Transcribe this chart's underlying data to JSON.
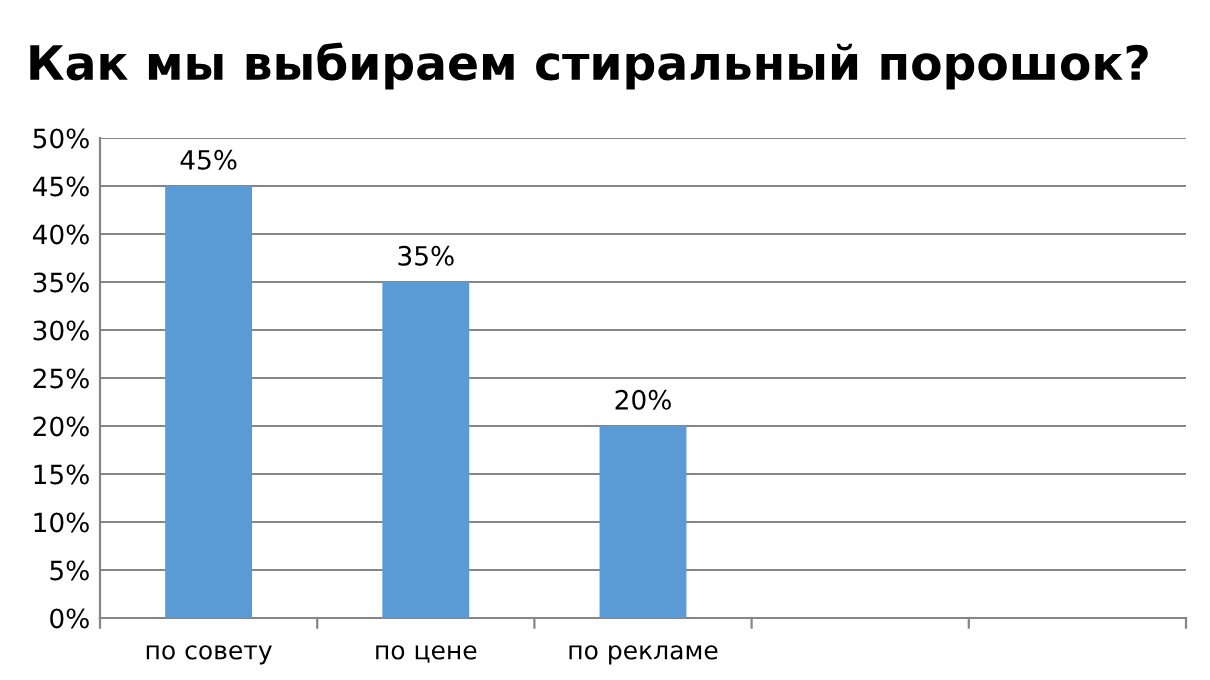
{
  "chart_data": {
    "type": "bar",
    "title": "Как мы выбираем стиральный порошок?",
    "categories": [
      "по совету",
      "по цене",
      "по рекламе",
      null,
      null
    ],
    "values": [
      45,
      35,
      20,
      null,
      null
    ],
    "value_labels": [
      "45%",
      "35%",
      "20%",
      null,
      null
    ],
    "color": "#5b9bd5",
    "ylim": [
      0,
      50
    ],
    "yticks": [
      {
        "value": 0,
        "label": "0%"
      },
      {
        "value": 5,
        "label": "5%"
      },
      {
        "value": 10,
        "label": "10%"
      },
      {
        "value": 15,
        "label": "15%"
      },
      {
        "value": 20,
        "label": "20%"
      },
      {
        "value": 25,
        "label": "25%"
      },
      {
        "value": 30,
        "label": "30%"
      },
      {
        "value": 35,
        "label": "35%"
      },
      {
        "value": 40,
        "label": "40%"
      },
      {
        "value": 45,
        "label": "45%"
      },
      {
        "value": 50,
        "label": "50%"
      }
    ],
    "grid": "y",
    "legend": false
  }
}
